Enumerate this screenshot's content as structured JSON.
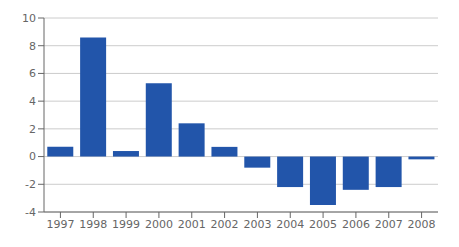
{
  "chart_data": {
    "type": "bar",
    "categories": [
      "1997",
      "1998",
      "1999",
      "2000",
      "2001",
      "2002",
      "2003",
      "2004",
      "2005",
      "2006",
      "2007",
      "2008"
    ],
    "values": [
      0.7,
      8.6,
      0.4,
      5.3,
      2.4,
      0.7,
      -0.8,
      -2.2,
      -3.5,
      -2.4,
      -2.2,
      -0.2
    ],
    "color": "#2255AA",
    "ylim": [
      -4,
      10
    ],
    "yticks": [
      -4,
      -2,
      0,
      2,
      4,
      6,
      8,
      10
    ],
    "grid": true
  }
}
